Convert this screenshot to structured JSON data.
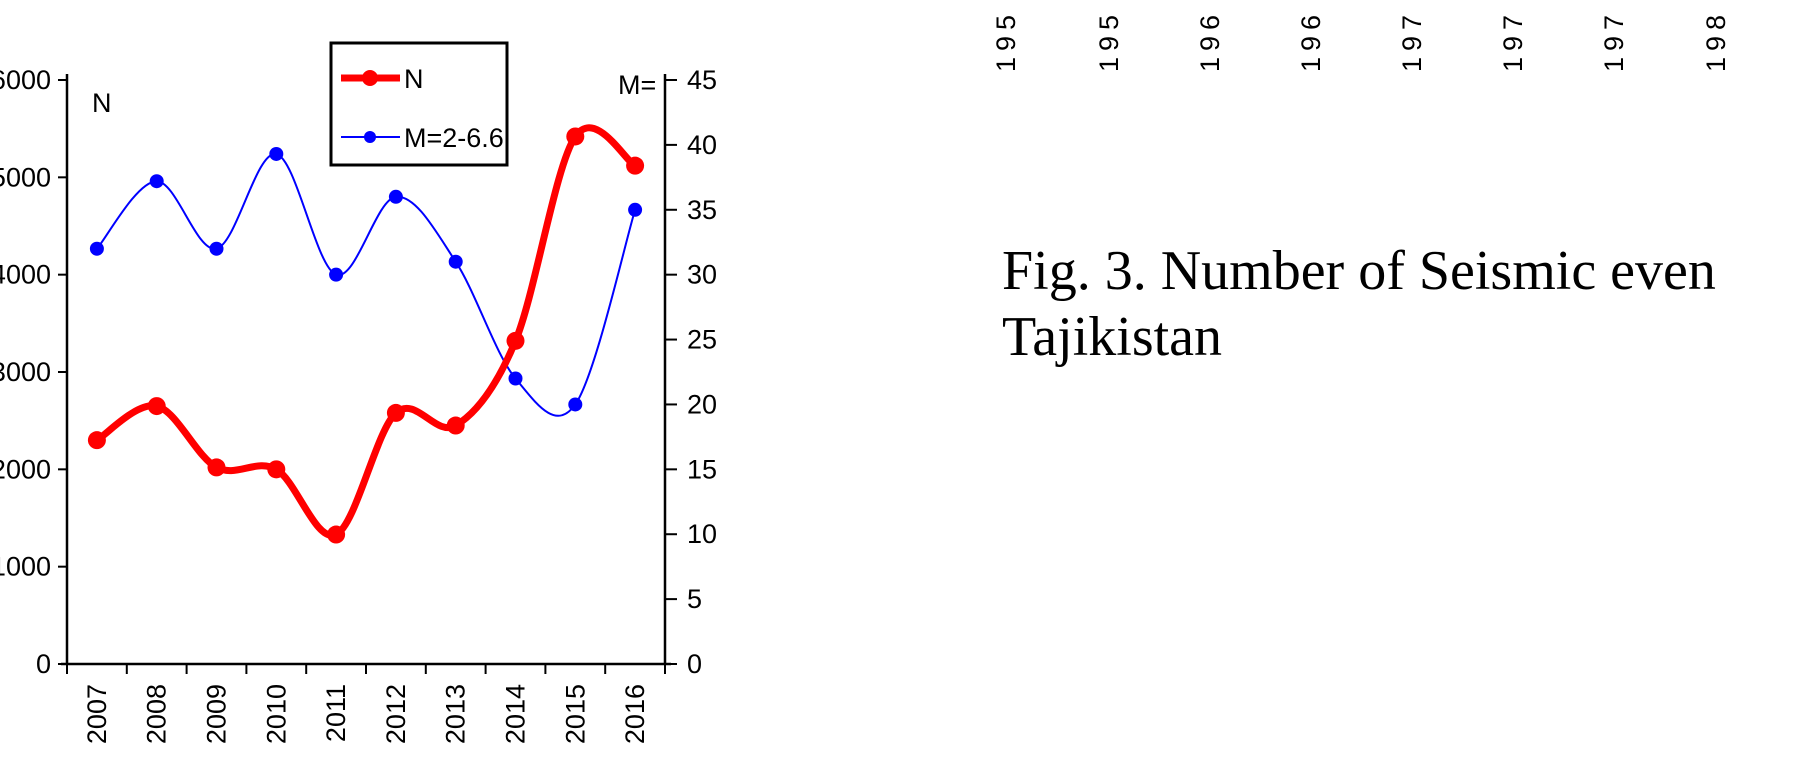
{
  "chart_data": {
    "type": "line",
    "x": [
      "2007",
      "2008",
      "2009",
      "2010",
      "2011",
      "2012",
      "2013",
      "2014",
      "2015",
      "2016"
    ],
    "left_axis_label": "N",
    "right_axis_label": "M=",
    "left_ylim": [
      0,
      6000
    ],
    "right_ylim": [
      0,
      45
    ],
    "left_ticks": [
      "0",
      "1000",
      "2000",
      "3000",
      "4000",
      "5000",
      "6000"
    ],
    "right_ticks": [
      "0",
      "5",
      "10",
      "15",
      "20",
      "25",
      "30",
      "35",
      "40",
      "45"
    ],
    "legend_position": "top-center",
    "series": [
      {
        "name": "N",
        "axis": "left",
        "color": "#ff0000",
        "values": [
          2300,
          2650,
          2020,
          2000,
          1330,
          2580,
          2450,
          3320,
          5420,
          5120
        ]
      },
      {
        "name": "M=2-6.6",
        "axis": "right",
        "color": "#0000ff",
        "values": [
          32,
          37.2,
          32,
          39.3,
          30,
          36,
          31,
          22,
          20,
          35
        ]
      }
    ],
    "top_cut_labels": [
      "195",
      "195",
      "196",
      "196",
      "197",
      "197",
      "197",
      "198"
    ],
    "caption_lines": [
      "Fig. 3. Number of Seismic even",
      "Tajikistan"
    ]
  }
}
